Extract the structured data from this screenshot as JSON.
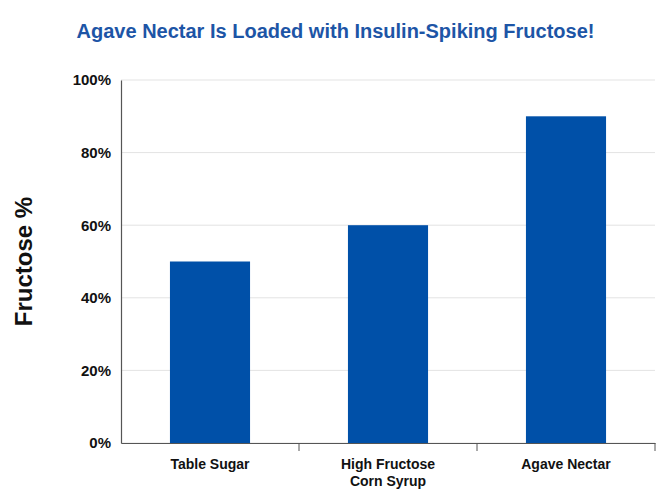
{
  "chart_data": {
    "type": "bar",
    "title": "Agave Nectar Is Loaded with Insulin-Spiking Fructose!",
    "y_label": "Fructose %",
    "categories": [
      "Table Sugar",
      "High Fructose Corn Syrup",
      "Agave Nectar"
    ],
    "values": [
      50,
      60,
      90
    ],
    "color": "#0050a8",
    "ylim": [
      0,
      100
    ],
    "yticks": [
      {
        "value": 0,
        "label": "0%"
      },
      {
        "value": 20,
        "label": "20%"
      },
      {
        "value": 40,
        "label": "40%"
      },
      {
        "value": 60,
        "label": "60%"
      },
      {
        "value": 80,
        "label": "80%"
      },
      {
        "value": 100,
        "label": "100%"
      }
    ],
    "grid": true
  }
}
